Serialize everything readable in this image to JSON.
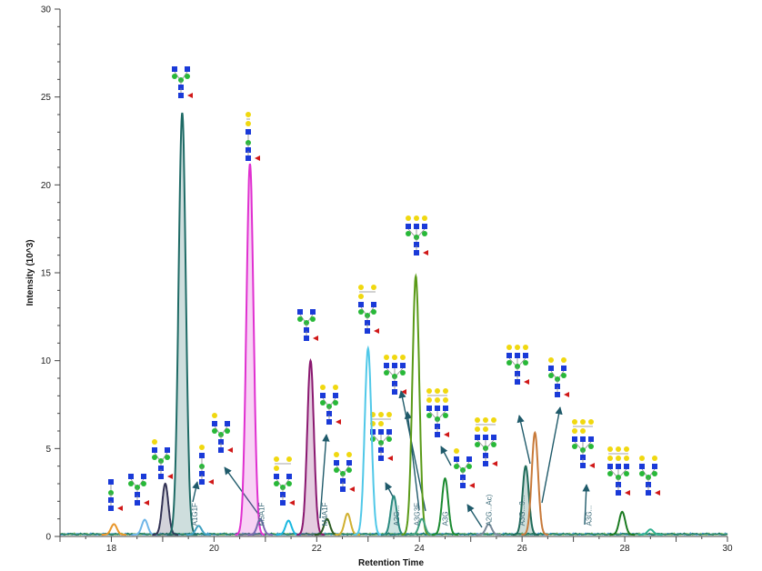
{
  "chart_data": {
    "type": "line",
    "title": "",
    "xlabel": "Retention Time",
    "ylabel": "Intensity (10^3)",
    "xlim": [
      17,
      30
    ],
    "ylim": [
      0,
      30
    ],
    "x_ticks": [
      "18",
      "20",
      "22",
      "24",
      "26",
      "28",
      "30"
    ],
    "y_ticks": [
      "0",
      "5",
      "10",
      "15",
      "20",
      "25",
      "30"
    ],
    "grid": false,
    "legend": "none",
    "peaks": [
      {
        "rt": 18.05,
        "height": 0.6,
        "color": "#e8962a",
        "filled": false
      },
      {
        "rt": 18.65,
        "height": 0.85,
        "color": "#6fb6e8",
        "filled": false
      },
      {
        "rt": 19.05,
        "height": 2.9,
        "color": "#333355",
        "filled": true
      },
      {
        "rt": 19.38,
        "height": 24.0,
        "color": "#1f6b66",
        "filled": true
      },
      {
        "rt": 19.7,
        "height": 0.5,
        "color": "#3fa0c0",
        "filled": false
      },
      {
        "rt": 20.7,
        "height": 21.1,
        "color": "#e030d0",
        "filled": true
      },
      {
        "rt": 20.9,
        "height": 0.9,
        "color": "#7a6ab0",
        "filled": false
      },
      {
        "rt": 21.45,
        "height": 0.8,
        "color": "#1ab8e0",
        "filled": false
      },
      {
        "rt": 21.88,
        "height": 9.9,
        "color": "#8a1870",
        "filled": true
      },
      {
        "rt": 22.2,
        "height": 0.9,
        "color": "#2a5a20",
        "filled": false
      },
      {
        "rt": 22.6,
        "height": 1.2,
        "color": "#d0b030",
        "filled": false
      },
      {
        "rt": 23.0,
        "height": 10.6,
        "color": "#50c8e8",
        "filled": false
      },
      {
        "rt": 23.5,
        "height": 2.2,
        "color": "#2a8a80",
        "filled": true
      },
      {
        "rt": 23.93,
        "height": 14.7,
        "color": "#5a9a18",
        "filled": false
      },
      {
        "rt": 24.05,
        "height": 0.9,
        "color": "#40a080",
        "filled": false
      },
      {
        "rt": 24.5,
        "height": 3.2,
        "color": "#1a8a30",
        "filled": false
      },
      {
        "rt": 25.35,
        "height": 0.6,
        "color": "#7a8a9a",
        "filled": false
      },
      {
        "rt": 26.07,
        "height": 3.9,
        "color": "#1f6b5a",
        "filled": true
      },
      {
        "rt": 26.25,
        "height": 5.8,
        "color": "#c87a3a",
        "filled": false
      },
      {
        "rt": 27.95,
        "height": 1.3,
        "color": "#1a7a20",
        "filled": false
      },
      {
        "rt": 28.5,
        "height": 0.3,
        "color": "#30b090",
        "filled": false
      }
    ],
    "labels": [
      {
        "text": "A1G1F",
        "rt": 19.62
      },
      {
        "text": "M5A1F",
        "rt": 20.92
      },
      {
        "text": "M4A1F",
        "rt": 22.15
      },
      {
        "text": "A2G...",
        "rt": 23.55
      },
      {
        "text": "A3G3F",
        "rt": 23.95
      },
      {
        "text": "A3G",
        "rt": 24.5
      },
      {
        "text": "A2G...Ac)",
        "rt": 25.35
      },
      {
        "text": "A3G...3...",
        "rt": 26.0
      },
      {
        "text": "A3G...",
        "rt": 27.3
      }
    ]
  }
}
